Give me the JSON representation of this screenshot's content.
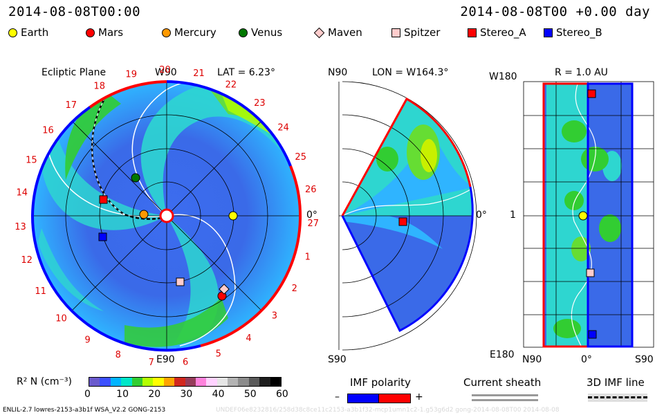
{
  "header": {
    "timestamp_left": "2014-08-08T00:00",
    "timestamp_right": "2014-08-08T00 +0.00 day"
  },
  "legend": [
    {
      "label": "Earth",
      "shape": "circle",
      "color": "#ffff00"
    },
    {
      "label": "Mars",
      "shape": "circle",
      "color": "#ff0000"
    },
    {
      "label": "Mercury",
      "shape": "circle",
      "color": "#ff9900"
    },
    {
      "label": "Venus",
      "shape": "circle",
      "color": "#007700"
    },
    {
      "label": "Maven",
      "shape": "diamond",
      "color": "#ffcccc"
    },
    {
      "label": "Spitzer",
      "shape": "square",
      "color": "#ffcccc"
    },
    {
      "label": "Stereo_A",
      "shape": "square",
      "color": "#ff0000"
    },
    {
      "label": "Stereo_B",
      "shape": "square",
      "color": "#0000ff"
    }
  ],
  "ecliptic_panel": {
    "title": "Ecliptic Plane",
    "lat_label": "LAT = 6.23°",
    "top_label": "W90",
    "bottom_label": "E90",
    "right_label": "0°",
    "carrington_labels": [
      "19",
      "20",
      "21",
      "22",
      "23",
      "24",
      "25",
      "26",
      "27",
      "1",
      "2",
      "3",
      "4",
      "5",
      "6",
      "7",
      "8",
      "9",
      "10",
      "11",
      "12",
      "13",
      "14",
      "15",
      "16",
      "17",
      "18"
    ]
  },
  "meridional_panel": {
    "title": "LON = W164.3°",
    "top_label": "N90",
    "bottom_label": "S90",
    "right_label": "0°"
  },
  "radial_panel": {
    "title": "R = 1.0 AU",
    "top_left": "W180",
    "bottom_left": "E180",
    "mid_left": "1",
    "x_left": "N90",
    "x_mid": "0°",
    "x_right": "S90"
  },
  "colorbar": {
    "label": "R² N (cm⁻³)",
    "ticks": [
      "0",
      "10",
      "20",
      "30",
      "40",
      "50",
      "60"
    ],
    "colors": [
      "#6a5acd",
      "#3c50ff",
      "#00b4ff",
      "#00e6c8",
      "#32cd32",
      "#b4ff00",
      "#ffff00",
      "#ffa500",
      "#d2281e",
      "#963c5a",
      "#ff82dc",
      "#ffd2ff",
      "#e6e6e6",
      "#b4b4b4",
      "#8c8c8c",
      "#5a5a5a",
      "#1e1e1e",
      "#000000"
    ]
  },
  "imf_polarity": {
    "label": "IMF polarity",
    "minus": "–",
    "plus": "+",
    "neg_color": "#0000ff",
    "pos_color": "#ff0000"
  },
  "current_sheath": {
    "label": "Current sheath"
  },
  "imf_line": {
    "label": "3D IMF line"
  },
  "footer": {
    "model_info": "ENLIL-2.7 lowres-2153-a3b1f WSA_V2.2 GONG-2153",
    "run_id": "UNDEF06e8232816/258d38c8ce11c2153-a3b1f32-mcp1umn1c2-1.g53g6d2 gong-2014-08-08T00 2014-08-08"
  }
}
